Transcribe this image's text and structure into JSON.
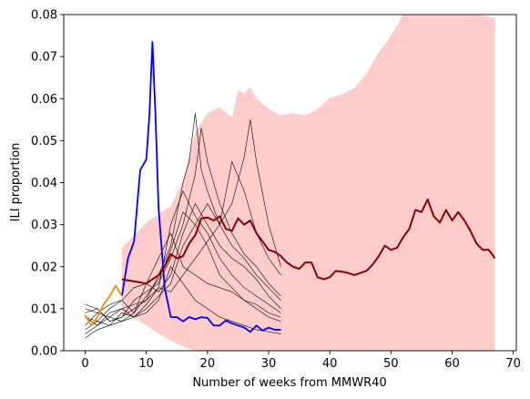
{
  "chart_data": {
    "type": "line",
    "xlabel": "Number of weeks from MMWR40",
    "ylabel": "ILI proportion",
    "xlim": [
      -3.5,
      70.5
    ],
    "ylim": [
      0,
      0.08
    ],
    "xticks": [
      0,
      10,
      20,
      30,
      40,
      50,
      60,
      70
    ],
    "yticks": [
      0.0,
      0.01,
      0.02,
      0.03,
      0.04,
      0.05,
      0.06,
      0.07,
      0.08
    ],
    "ytick_labels": [
      "0.00",
      "0.01",
      "0.02",
      "0.03",
      "0.04",
      "0.05",
      "0.06",
      "0.07",
      "0.08"
    ],
    "grid": false,
    "colors": {
      "band": "#ff9999",
      "forecast": "#8b0000",
      "observed": "#0000ff",
      "recent": "#ff8c00",
      "past_seasons": "#000000"
    },
    "band": {
      "x": [
        6,
        8,
        10,
        12,
        14,
        16,
        18,
        20,
        22,
        24,
        25,
        26,
        27,
        28,
        30,
        32,
        34,
        36,
        38,
        40,
        42,
        44,
        46,
        48,
        50,
        52,
        54,
        56,
        58,
        60,
        62,
        64,
        67
      ],
      "upper": [
        0.0245,
        0.0275,
        0.0305,
        0.0325,
        0.0345,
        0.0405,
        0.052,
        0.0565,
        0.058,
        0.0555,
        0.062,
        0.0612,
        0.0628,
        0.06,
        0.0575,
        0.056,
        0.0565,
        0.056,
        0.0575,
        0.0602,
        0.061,
        0.0625,
        0.066,
        0.071,
        0.075,
        0.08,
        0.08,
        0.08,
        0.08,
        0.08,
        0.08,
        0.08,
        0.0792
      ],
      "lower": [
        0.0085,
        0.008,
        0.006,
        0.004,
        0.0025,
        0.001,
        0.0,
        0.0,
        0.0,
        0.0,
        0.0,
        0.0,
        0.0,
        0.0,
        0.0,
        0.0,
        0.0,
        0.0,
        0.0,
        0.0,
        0.0,
        0.0,
        0.0,
        0.0,
        0.0,
        0.0,
        0.0,
        0.0,
        0.0,
        0.0,
        0.0,
        0.0,
        0.0
      ]
    },
    "past_seasons": [
      {
        "x": [
          0,
          2,
          4,
          6,
          8,
          10,
          12,
          14,
          16,
          18,
          20,
          22,
          24,
          26,
          28,
          30,
          32
        ],
        "y": [
          0.008,
          0.007,
          0.01,
          0.012,
          0.009,
          0.016,
          0.014,
          0.018,
          0.028,
          0.035,
          0.03,
          0.025,
          0.022,
          0.02,
          0.017,
          0.013,
          0.01
        ]
      },
      {
        "x": [
          0,
          2,
          4,
          6,
          8,
          10,
          12,
          14,
          16,
          17,
          18,
          19,
          20,
          22,
          24,
          26,
          28,
          30,
          32
        ],
        "y": [
          0.006,
          0.009,
          0.008,
          0.01,
          0.011,
          0.012,
          0.018,
          0.025,
          0.04,
          0.045,
          0.0565,
          0.043,
          0.038,
          0.03,
          0.025,
          0.022,
          0.018,
          0.015,
          0.012
        ]
      },
      {
        "x": [
          0,
          2,
          4,
          6,
          8,
          10,
          12,
          14,
          16,
          18,
          19,
          20,
          22,
          24,
          26,
          28,
          30,
          32
        ],
        "y": [
          0.011,
          0.01,
          0.007,
          0.008,
          0.012,
          0.014,
          0.016,
          0.022,
          0.03,
          0.042,
          0.053,
          0.045,
          0.035,
          0.028,
          0.023,
          0.02,
          0.016,
          0.013
        ]
      },
      {
        "x": [
          0,
          2,
          4,
          6,
          8,
          10,
          12,
          14,
          16,
          18,
          20,
          22,
          24,
          26,
          28,
          30,
          32
        ],
        "y": [
          0.005,
          0.007,
          0.006,
          0.009,
          0.008,
          0.01,
          0.013,
          0.016,
          0.025,
          0.03,
          0.035,
          0.03,
          0.045,
          0.038,
          0.028,
          0.022,
          0.018
        ]
      },
      {
        "x": [
          0,
          2,
          4,
          6,
          8,
          10,
          12,
          14,
          16,
          18,
          20,
          22,
          24,
          26,
          27,
          28,
          30,
          32
        ],
        "y": [
          0.003,
          0.005,
          0.006,
          0.007,
          0.008,
          0.011,
          0.015,
          0.014,
          0.018,
          0.022,
          0.026,
          0.03,
          0.035,
          0.046,
          0.055,
          0.045,
          0.03,
          0.02
        ]
      },
      {
        "x": [
          0,
          2,
          4,
          6,
          8,
          10,
          12,
          14,
          16,
          18,
          20,
          22,
          24,
          26,
          28,
          30,
          32
        ],
        "y": [
          0.01,
          0.009,
          0.011,
          0.012,
          0.015,
          0.016,
          0.022,
          0.028,
          0.02,
          0.018,
          0.016,
          0.015,
          0.014,
          0.012,
          0.011,
          0.009,
          0.008
        ]
      },
      {
        "x": [
          0,
          2,
          4,
          6,
          8,
          10,
          12,
          14,
          16,
          18,
          20,
          22,
          24,
          26,
          28,
          30,
          32
        ],
        "y": [
          0.008,
          0.006,
          0.009,
          0.01,
          0.008,
          0.009,
          0.012,
          0.02,
          0.016,
          0.012,
          0.01,
          0.008,
          0.007,
          0.006,
          0.005,
          0.0045,
          0.004
        ]
      },
      {
        "x": [
          0,
          2,
          4,
          6,
          8,
          10,
          12,
          14,
          16,
          18,
          20,
          22,
          24,
          26,
          28,
          30,
          32
        ],
        "y": [
          0.004,
          0.006,
          0.008,
          0.007,
          0.009,
          0.013,
          0.017,
          0.024,
          0.033,
          0.03,
          0.025,
          0.018,
          0.015,
          0.012,
          0.01,
          0.008,
          0.007
        ]
      },
      {
        "x": [
          0,
          2,
          4,
          6,
          8,
          10,
          12,
          14,
          16,
          18,
          20,
          22,
          24,
          26,
          28,
          30,
          32
        ],
        "y": [
          0.009,
          0.01,
          0.007,
          0.008,
          0.01,
          0.012,
          0.015,
          0.03,
          0.038,
          0.032,
          0.028,
          0.022,
          0.018,
          0.015,
          0.013,
          0.011,
          0.009
        ]
      }
    ],
    "observed": {
      "x": [
        6,
        7,
        8,
        9,
        10,
        10.5,
        11,
        11.5,
        12,
        13,
        14,
        15,
        16,
        17,
        18,
        19,
        20,
        21,
        22,
        23,
        24,
        25,
        26,
        27,
        28,
        29,
        30,
        31,
        32
      ],
      "y": [
        0.013,
        0.022,
        0.026,
        0.043,
        0.0455,
        0.056,
        0.0735,
        0.056,
        0.034,
        0.015,
        0.008,
        0.008,
        0.007,
        0.008,
        0.0075,
        0.008,
        0.0078,
        0.006,
        0.006,
        0.0072,
        0.0065,
        0.006,
        0.0055,
        0.0045,
        0.006,
        0.0048,
        0.0055,
        0.005,
        0.005
      ]
    },
    "recent": {
      "x": [
        0,
        1,
        2,
        3,
        4,
        5,
        6
      ],
      "y": [
        0.0085,
        0.006,
        0.008,
        0.011,
        0.013,
        0.0155,
        0.013
      ]
    },
    "forecast": {
      "x": [
        6,
        8,
        10,
        11,
        12,
        13,
        14,
        15,
        16,
        17,
        18,
        19,
        20,
        21,
        22,
        23,
        24,
        25,
        26,
        27,
        28,
        29,
        30,
        31,
        32,
        33,
        34,
        35,
        36,
        37,
        38,
        39,
        40,
        41,
        42,
        43,
        44,
        45,
        46,
        47,
        48,
        49,
        50,
        51,
        52,
        53,
        54,
        55,
        56,
        57,
        58,
        59,
        60,
        61,
        62,
        63,
        64,
        65,
        66,
        67
      ],
      "y": [
        0.017,
        0.0165,
        0.016,
        0.017,
        0.018,
        0.02,
        0.023,
        0.022,
        0.0225,
        0.0255,
        0.0275,
        0.0315,
        0.0317,
        0.031,
        0.032,
        0.029,
        0.0285,
        0.0315,
        0.03,
        0.031,
        0.028,
        0.026,
        0.024,
        0.0235,
        0.0225,
        0.021,
        0.02,
        0.0195,
        0.021,
        0.021,
        0.0175,
        0.017,
        0.0175,
        0.019,
        0.0188,
        0.0185,
        0.018,
        0.0185,
        0.019,
        0.0205,
        0.0225,
        0.025,
        0.024,
        0.0245,
        0.027,
        0.029,
        0.0335,
        0.033,
        0.036,
        0.032,
        0.0305,
        0.0335,
        0.031,
        0.033,
        0.031,
        0.0285,
        0.0255,
        0.024,
        0.024,
        0.022
      ]
    }
  }
}
